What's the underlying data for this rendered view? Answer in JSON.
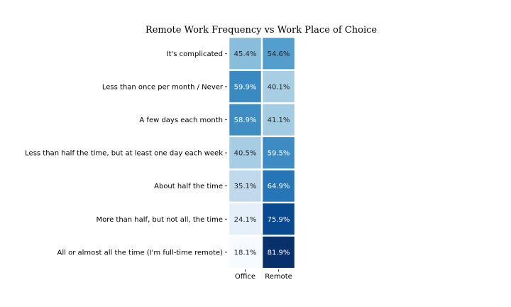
{
  "chart_data": {
    "type": "heatmap",
    "title": "Remote Work Frequency vs Work Place of Choice",
    "xlabel": "",
    "ylabel": "",
    "columns": [
      "Office",
      "Remote"
    ],
    "rows": [
      "It's complicated",
      "Less than once per month / Never",
      "A few days each month",
      "Less than half the time, but at least one day each week",
      "About half the time",
      "More than half, but not all, the time",
      "All or almost all the time (I'm full-time remote)"
    ],
    "values": [
      [
        45.4,
        54.6
      ],
      [
        59.9,
        40.1
      ],
      [
        58.9,
        41.1
      ],
      [
        40.5,
        59.5
      ],
      [
        35.1,
        64.9
      ],
      [
        24.1,
        75.9
      ],
      [
        18.1,
        81.9
      ]
    ],
    "value_labels": [
      [
        "45.4%",
        "54.6%"
      ],
      [
        "59.9%",
        "40.1%"
      ],
      [
        "58.9%",
        "41.1%"
      ],
      [
        "40.5%",
        "59.5%"
      ],
      [
        "35.1%",
        "64.9%"
      ],
      [
        "24.1%",
        "75.9%"
      ],
      [
        "18.1%",
        "81.9%"
      ]
    ],
    "colormap": "Blues",
    "color_range": [
      18.1,
      81.9
    ],
    "colorbar": false
  }
}
